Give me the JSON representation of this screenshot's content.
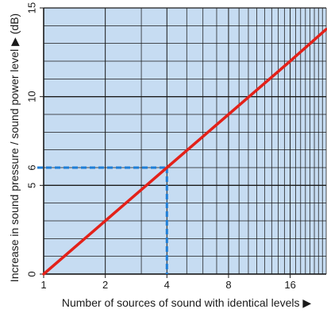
{
  "chart_data": {
    "type": "line",
    "xlabel": "Number of sources of sound with  identical levels ▶",
    "ylabel": "Increase in sound pressure / sound power level  ▶ (dB)",
    "x_scale": "log2",
    "xlim": [
      1,
      24
    ],
    "ylim": [
      0,
      15
    ],
    "x_ticks": [
      {
        "value": 1,
        "label": "1"
      },
      {
        "value": 2,
        "label": "2"
      },
      {
        "value": 4,
        "label": "4"
      },
      {
        "value": 8,
        "label": "8"
      },
      {
        "value": 16,
        "label": "16"
      }
    ],
    "y_ticks": [
      {
        "value": 0,
        "label": "0"
      },
      {
        "value": 5,
        "label": "5"
      },
      {
        "value": 10,
        "label": "10"
      },
      {
        "value": 15,
        "label": "15"
      }
    ],
    "grid": true,
    "series": [
      {
        "color": "#e32119",
        "points": [
          {
            "x": 1,
            "y": 0
          },
          {
            "x": 2,
            "y": 3
          },
          {
            "x": 4,
            "y": 6
          },
          {
            "x": 8,
            "y": 9
          },
          {
            "x": 16,
            "y": 12
          },
          {
            "x": 24,
            "y": 13.8
          }
        ]
      }
    ],
    "annotation": {
      "x": 4,
      "y": 6,
      "label": "6",
      "color": "#1f7ed6"
    },
    "colors": {
      "plot_background": "#c6dcf2",
      "grid": "#1a1a1a"
    }
  }
}
